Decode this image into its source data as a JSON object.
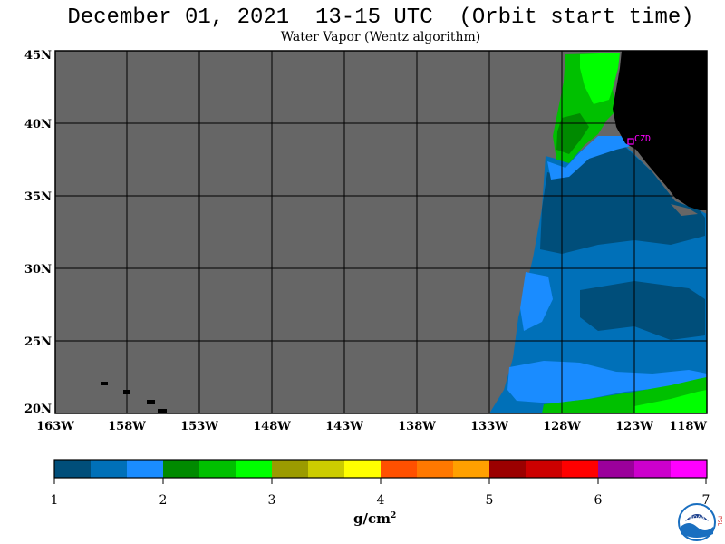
{
  "header": {
    "title": "December 01, 2021  13-15 UTC  (Orbit start time)",
    "subtitle": "Water Vapor (Wentz algorithm)"
  },
  "map": {
    "lat_labels": [
      "45N",
      "40N",
      "35N",
      "30N",
      "25N",
      "20N"
    ],
    "lon_labels": [
      "163W",
      "158W",
      "153W",
      "148W",
      "143W",
      "138W",
      "133W",
      "128W",
      "123W",
      "118W"
    ],
    "station_label": "CZD",
    "colors": {
      "no_data": "#666666",
      "land": "#000000",
      "grid": "#000000",
      "station": "#ff00ff"
    }
  },
  "colorbar": {
    "labels": [
      "1",
      "2",
      "3",
      "4",
      "5",
      "6",
      "7"
    ],
    "unit_base": "g/cm",
    "unit_sup": "2",
    "colors": [
      "#004e7a",
      "#0070b8",
      "#1a8cff",
      "#008a00",
      "#00c000",
      "#00ff00",
      "#9b9b00",
      "#cccc00",
      "#ffff00",
      "#ff5000",
      "#ff7800",
      "#ffa000",
      "#9b0000",
      "#cc0000",
      "#ff0000",
      "#9b009b",
      "#cc00cc",
      "#ff00ff"
    ]
  },
  "logo": {
    "agency_text": "NOAA",
    "side_text": "PSL"
  }
}
